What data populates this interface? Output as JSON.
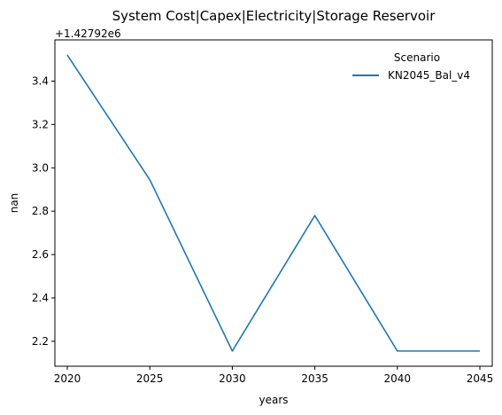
{
  "chart_data": {
    "type": "line",
    "title": "System Cost|Capex|Electricity|Storage Reservoir",
    "xlabel": "years",
    "ylabel": "nan",
    "offset_label": "+1.42792e6",
    "x": [
      2020,
      2025,
      2030,
      2035,
      2040,
      2045
    ],
    "x_ticks": [
      "2020",
      "2025",
      "2030",
      "2035",
      "2040",
      "2045"
    ],
    "y_ticks": [
      "2.2",
      "2.4",
      "2.6",
      "2.8",
      "3.0",
      "3.2",
      "3.4"
    ],
    "xlim": [
      2019.25,
      2045.75
    ],
    "ylim": [
      2.085,
      3.59
    ],
    "grid": false,
    "legend": {
      "title": "Scenario",
      "placement": "top-right"
    },
    "series": [
      {
        "name": "KN2045_Bal_v4",
        "color": "#1f77b4",
        "values": [
          3.52,
          2.945,
          2.155,
          2.78,
          2.155,
          2.155
        ]
      }
    ]
  }
}
